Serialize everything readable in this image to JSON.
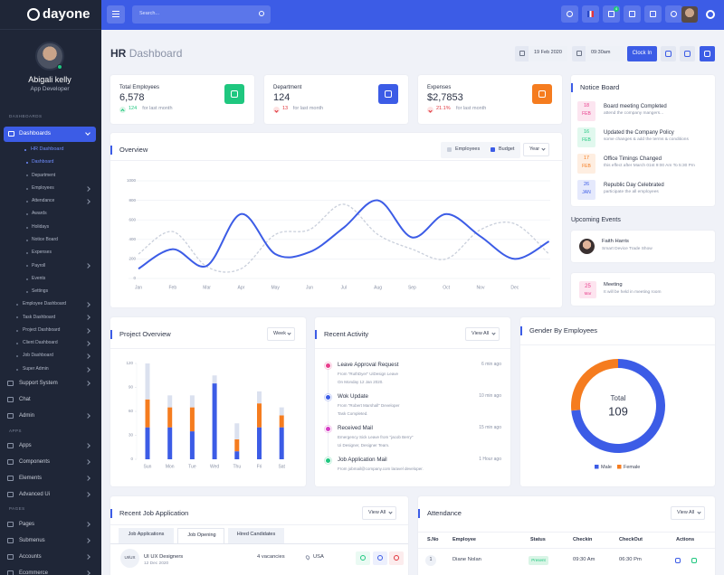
{
  "sidebar": {
    "brand": "dayone",
    "user": {
      "name": "Abigali kelly",
      "role": "App Developer"
    },
    "dashboards": {
      "heading": "DASHBOARDS",
      "active": "Dashboards",
      "hr": "HR Dashboard",
      "hr_items": [
        "Dashboard",
        "Department",
        "Employees",
        "Attendance",
        "Awards",
        "Holidays",
        "Notice Board",
        "Expenses",
        "Payroll",
        "Events",
        "Settings"
      ],
      "others": [
        "Employee Dashboard",
        "Task Dashboard",
        "Project Dashboard",
        "Client Dashboard",
        "Job Dashboard",
        "Super Admin"
      ]
    },
    "main": [
      "Support System",
      "Chat",
      "Admin"
    ],
    "apps": {
      "heading": "APPS",
      "items": [
        "Apps",
        "Components",
        "Elements",
        "Advanced Ui"
      ]
    },
    "pages": {
      "heading": "PAGES",
      "items": [
        "Pages",
        "Submenus",
        "Accounts",
        "Ecommerce"
      ]
    }
  },
  "topbar": {
    "search": "Search...",
    "notification_count": "4"
  },
  "header": {
    "title_strong": "HR",
    "title_rest": "Dashboard",
    "date": "19 Feb 2020",
    "time": "09:30am",
    "button": "Clock In"
  },
  "stats": [
    {
      "label": "Total Employees",
      "value": "6,578",
      "change": "124",
      "note": "for last month",
      "trend": "up",
      "color": "#1fc77f"
    },
    {
      "label": "Department",
      "value": "124",
      "change": "13",
      "note": "for last month",
      "trend": "down",
      "color": "#3c5ce6"
    },
    {
      "label": "Expenses",
      "value": "$2,7853",
      "change": "21.1%",
      "note": "for last month",
      "trend": "down",
      "color": "#f57c1f"
    }
  ],
  "overview": {
    "title": "Overview",
    "filter": "Year",
    "chart_data": {
      "type": "line",
      "categories": [
        "Jan",
        "Feb",
        "Mar",
        "Apr",
        "May",
        "Jun",
        "Jul",
        "Aug",
        "Sep",
        "Oct",
        "Nov",
        "Dec",
        null
      ],
      "series": [
        {
          "name": "Employees",
          "color": "#c9cfdb",
          "style": "dashed",
          "values": [
            250,
            480,
            120,
            100,
            450,
            500,
            760,
            450,
            300,
            200,
            500,
            560,
            250
          ]
        },
        {
          "name": "Budget",
          "color": "#3c5ce6",
          "style": "solid",
          "values": [
            100,
            300,
            130,
            660,
            250,
            270,
            520,
            800,
            420,
            660,
            430,
            200,
            380
          ]
        }
      ],
      "ylim": [
        0,
        1000
      ],
      "yticks": [
        0,
        200,
        400,
        600,
        800,
        1000
      ],
      "grid": true
    }
  },
  "notice_board": {
    "title": "Notice Board",
    "items": [
      {
        "day": "18",
        "month": "FEB",
        "title": "Board meeting Completed",
        "text": "attend the company mangers...",
        "color": "#e83e8c"
      },
      {
        "day": "16",
        "month": "FEB",
        "title": "Updated the Company Policy",
        "text": "some changes & add the terms & conditions",
        "color": "#1fc77f"
      },
      {
        "day": "17",
        "month": "FEB",
        "title": "Office Timings Changed",
        "text": "this effect after March 01st 9:00 Am To 5:30 Pm",
        "color": "#f57c1f"
      },
      {
        "day": "26",
        "month": "JAN",
        "title": "Republic Day Celebrated",
        "text": "participate the all employees",
        "color": "#3c5ce6"
      }
    ]
  },
  "events": {
    "title": "Upcoming Events",
    "items": [
      {
        "title": "Faith Harris",
        "text": "Smart Device Trade Show"
      },
      {
        "day": "25",
        "month": "Mar",
        "title": "Meeting",
        "text": "It will be held in meeting room"
      }
    ]
  },
  "project_overview": {
    "title": "Project Overview",
    "filter": "Week",
    "chart_data": {
      "type": "stacked_bar",
      "categories": [
        "Sun",
        "Mon",
        "Tue",
        "Wed",
        "Thu",
        "Fri",
        "Sat"
      ],
      "series": [
        {
          "color": "#3c5ce6",
          "values": [
            40,
            40,
            35,
            95,
            10,
            40,
            40
          ]
        },
        {
          "color": "#f57c1f",
          "values": [
            35,
            25,
            30,
            0,
            15,
            30,
            15
          ]
        },
        {
          "color": "#dbe1ef",
          "values": [
            45,
            15,
            15,
            10,
            20,
            15,
            10
          ]
        }
      ],
      "ylim": [
        0,
        120
      ],
      "yticks": [
        0,
        30,
        60,
        90,
        120
      ]
    }
  },
  "recent_activity": {
    "title": "Recent Activity",
    "button": "View All",
    "items": [
      {
        "title": "Leave Approval Request",
        "time": "6 min ago",
        "lines": [
          "From \"RuthDyer\" UiDesign Leave",
          "On Monday 12 Jan 2020."
        ],
        "color": "#e83e8c"
      },
      {
        "title": "Wok Update",
        "time": "10 min ago",
        "lines": [
          "From \"Robert Marshall\" Developer",
          "Task Completed."
        ],
        "color": "#3c5ce6"
      },
      {
        "title": "Received Mail",
        "time": "15 min ago",
        "lines": [
          "Emergency Sick Leave from \"jacob Berry\"",
          "Ui Designer, Designer Team."
        ],
        "color": "#d63dc4"
      },
      {
        "title": "Job Application Mail",
        "time": "1 Hour ago",
        "lines": [
          "From jobmail@company.com laravel developer."
        ],
        "color": "#1fc77f"
      }
    ]
  },
  "gender": {
    "title": "Gender By Employees",
    "center_label": "Total",
    "chart_data": {
      "type": "donut",
      "total": 109,
      "categories": [
        "Male",
        "Female"
      ],
      "values": [
        80,
        29
      ],
      "colors": [
        "#3c5ce6",
        "#f57c1f"
      ]
    }
  },
  "recent_jobs": {
    "title": "Recent Job Application",
    "button": "View All",
    "tabs": [
      "Job Applications",
      "Job Opening",
      "Hired Candidates"
    ],
    "rows": [
      {
        "badge": "UI/UX",
        "title": "UI UX Designers",
        "date": "12 Dec 2020",
        "vacancies": "4 vacancies",
        "location": "USA"
      }
    ]
  },
  "attendance": {
    "title": "Attendance",
    "button": "View All",
    "headers": [
      "S.No",
      "Employee",
      "Status",
      "Checkin",
      "CheckOut",
      "Actions"
    ],
    "rows": [
      [
        "1",
        "Diane Nolan",
        "Present",
        "09:30 Am",
        "06:30 Pm"
      ]
    ]
  }
}
